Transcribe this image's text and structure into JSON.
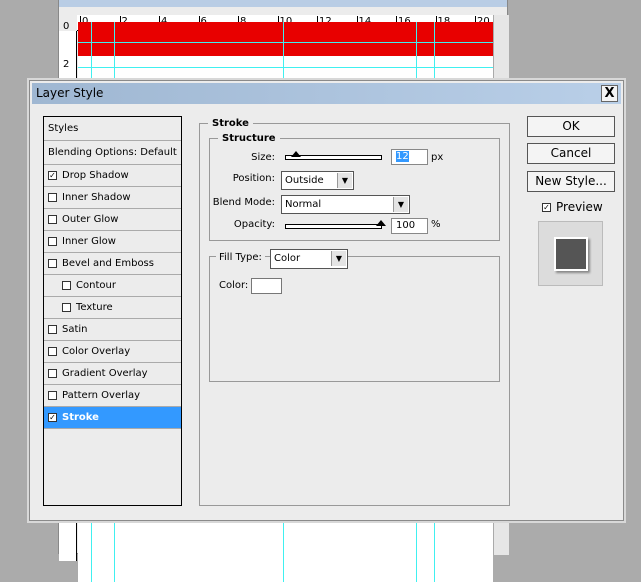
{
  "ruler": {
    "h_ticks": [
      "0",
      "2",
      "4",
      "6",
      "8",
      "10",
      "12",
      "14",
      "16",
      "18",
      "20"
    ],
    "v_ticks": [
      "0",
      "2"
    ]
  },
  "canvas_color": "#e80000",
  "dialog": {
    "title": "Layer Style",
    "close_label": "X",
    "styles_list": [
      {
        "label": "Styles",
        "checkbox": false
      },
      {
        "label": "Blending Options: Default",
        "checkbox": false
      },
      {
        "label": "Drop Shadow",
        "checkbox": true,
        "checked": true
      },
      {
        "label": "Inner Shadow",
        "checkbox": true,
        "checked": false
      },
      {
        "label": "Outer Glow",
        "checkbox": true,
        "checked": false
      },
      {
        "label": "Inner Glow",
        "checkbox": true,
        "checked": false
      },
      {
        "label": "Bevel and Emboss",
        "checkbox": true,
        "checked": false
      },
      {
        "label": "Contour",
        "checkbox": true,
        "checked": false,
        "indent": true
      },
      {
        "label": "Texture",
        "checkbox": true,
        "checked": false,
        "indent": true
      },
      {
        "label": "Satin",
        "checkbox": true,
        "checked": false
      },
      {
        "label": "Color Overlay",
        "checkbox": true,
        "checked": false
      },
      {
        "label": "Gradient Overlay",
        "checkbox": true,
        "checked": false
      },
      {
        "label": "Pattern Overlay",
        "checkbox": true,
        "checked": false
      },
      {
        "label": "Stroke",
        "checkbox": true,
        "checked": true,
        "selected": true
      }
    ],
    "stroke": {
      "title": "Stroke",
      "structure_title": "Structure",
      "size_label": "Size:",
      "size_value": "12",
      "size_unit": "px",
      "size_slider_fraction": 0.06,
      "position_label": "Position:",
      "position_value": "Outside",
      "blend_label": "Blend Mode:",
      "blend_value": "Normal",
      "opacity_label": "Opacity:",
      "opacity_value": "100",
      "opacity_unit": "%",
      "opacity_slider_fraction": 1.0,
      "fill_type_label": "Fill Type:",
      "fill_type_value": "Color",
      "color_label": "Color:",
      "color_value": "#ffffff"
    },
    "buttons": {
      "ok": "OK",
      "cancel": "Cancel",
      "new_style": "New Style..."
    },
    "preview_label": "Preview",
    "preview_checked": true,
    "preview_swatch": "#555555",
    "selection_color": "#3399ff"
  }
}
